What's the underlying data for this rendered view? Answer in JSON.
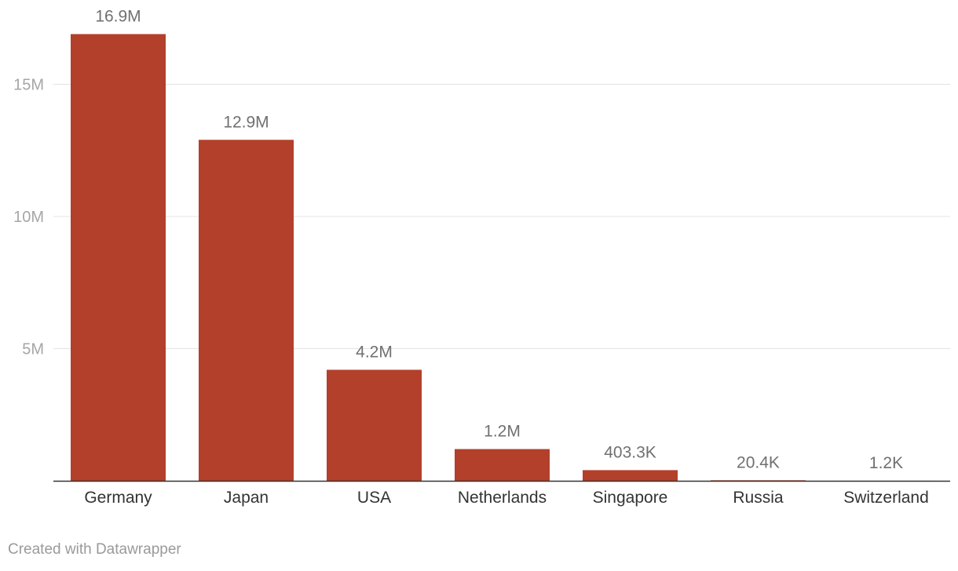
{
  "chart_data": {
    "type": "bar",
    "categories": [
      "Germany",
      "Japan",
      "USA",
      "Netherlands",
      "Singapore",
      "Russia",
      "Switzerland"
    ],
    "values": [
      16900000,
      12900000,
      4200000,
      1200000,
      403300,
      20400,
      1200
    ],
    "value_labels": [
      "16.9M",
      "12.9M",
      "4.2M",
      "1.2M",
      "403.3K",
      "20.4K",
      "1.2K"
    ],
    "ylim": [
      0,
      17500000
    ],
    "yticks": [
      {
        "value": 5000000,
        "label": "5M"
      },
      {
        "value": 10000000,
        "label": "10M"
      },
      {
        "value": 15000000,
        "label": "15M"
      }
    ],
    "bar_color": "#b2402a",
    "grid": true,
    "legend": "none"
  },
  "footer": {
    "credit": "Created with Datawrapper"
  }
}
